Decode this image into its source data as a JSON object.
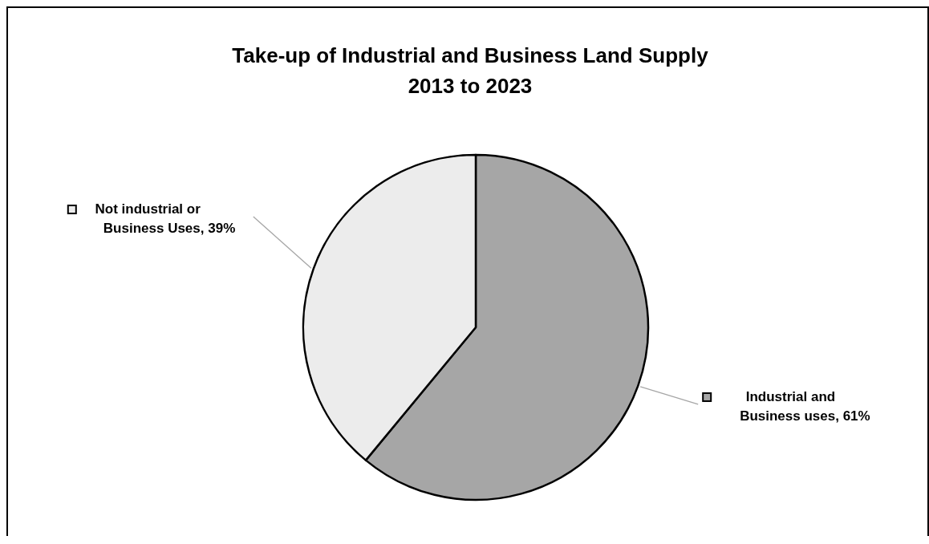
{
  "chart_data": {
    "type": "pie",
    "title": "Take-up of Industrial and Business Land Supply\n2013 to 2023",
    "categories": [
      "Industrial and Business uses",
      "Not industrial or Business Uses"
    ],
    "values": [
      61,
      39
    ],
    "value_labels": [
      ", 61%",
      ", 39%"
    ],
    "colors": [
      "#a6a6a6",
      "#ececec"
    ],
    "legend": "left"
  }
}
